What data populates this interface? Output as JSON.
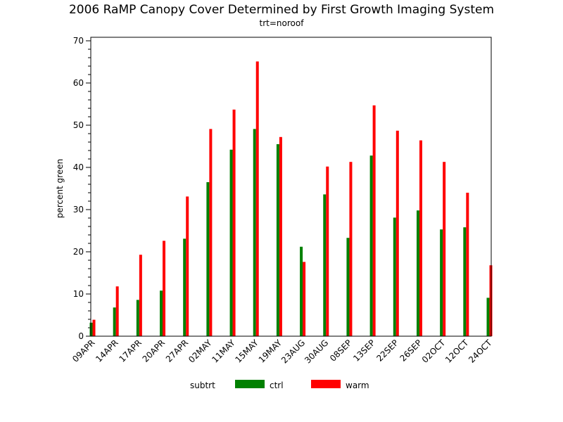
{
  "chart_data": {
    "type": "bar",
    "title": "2006 RaMP Canopy Cover Determined by First Growth Imaging System",
    "subtitle": "trt=noroof",
    "xlabel": "",
    "ylabel": "percent green",
    "ylim": [
      0,
      70
    ],
    "yticks": [
      0,
      10,
      20,
      30,
      40,
      50,
      60,
      70
    ],
    "categories": [
      "09APR",
      "14APR",
      "17APR",
      "20APR",
      "27APR",
      "02MAY",
      "11MAY",
      "15MAY",
      "19MAY",
      "23AUG",
      "30AUG",
      "08SEP",
      "13SEP",
      "22SEP",
      "26SEP",
      "02OCT",
      "12OCT",
      "24OCT"
    ],
    "series": [
      {
        "name": "ctrl",
        "color": "#008000",
        "values": [
          3.2,
          6.8,
          8.6,
          10.8,
          23.1,
          36.5,
          44.2,
          49.1,
          45.5,
          21.2,
          33.6,
          23.3,
          42.8,
          28.1,
          29.8,
          25.3,
          25.8,
          9.1
        ]
      },
      {
        "name": "warm",
        "color": "#ff0000",
        "values": [
          3.9,
          11.8,
          19.3,
          22.6,
          33.1,
          49.1,
          53.7,
          65.1,
          47.2,
          17.6,
          40.2,
          41.3,
          54.7,
          48.7,
          46.4,
          41.3,
          34.0,
          16.8
        ]
      }
    ],
    "legend": {
      "title": "subtrt",
      "position": "bottom"
    },
    "grid": false
  }
}
